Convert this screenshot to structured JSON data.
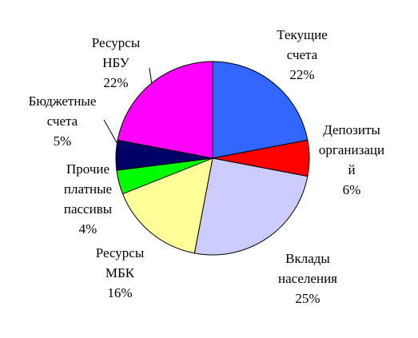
{
  "chart_data": {
    "type": "pie",
    "categories": [
      "Текущие счета",
      "Депозиты организаций",
      "Вклады населения",
      "Ресурсы МБК",
      "Прочие платные пассивы",
      "Бюджетные счета",
      "Ресурсы НБУ"
    ],
    "values": [
      22,
      6,
      25,
      16,
      4,
      5,
      22
    ],
    "value_labels": [
      "22%",
      "6%",
      "25%",
      "16%",
      "4%",
      "5%",
      "22%"
    ],
    "colors": [
      "#3366ff",
      "#ff0000",
      "#ccccff",
      "#ffff99",
      "#00ff00",
      "#000066",
      "#ff00ff"
    ]
  }
}
